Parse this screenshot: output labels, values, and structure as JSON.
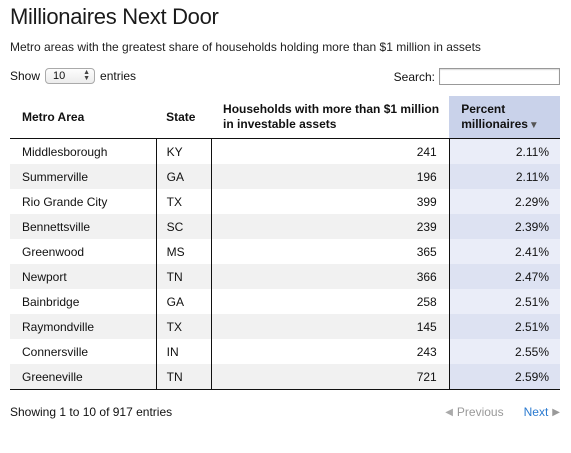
{
  "header": {
    "title": "Millionaires Next Door",
    "subtitle": "Metro areas with the greatest share of households holding more than $1 million in assets"
  },
  "length_control": {
    "label_before": "Show",
    "selected_value": "10",
    "label_after": "entries"
  },
  "search": {
    "label": "Search:",
    "value": "",
    "placeholder": ""
  },
  "table": {
    "columns": [
      {
        "label": "Metro Area"
      },
      {
        "label": "State"
      },
      {
        "label": "Households with more than $1 million in investable assets"
      },
      {
        "label": "Percent millionaires",
        "sorted": "descending-arrow",
        "sort_icon": "triangle-down-icon"
      }
    ],
    "rows": [
      {
        "metro": "Middlesborough",
        "state": "KY",
        "households": "241",
        "percent": "2.11%"
      },
      {
        "metro": "Summerville",
        "state": "GA",
        "households": "196",
        "percent": "2.11%"
      },
      {
        "metro": "Rio Grande City",
        "state": "TX",
        "households": "399",
        "percent": "2.29%"
      },
      {
        "metro": "Bennettsville",
        "state": "SC",
        "households": "239",
        "percent": "2.39%"
      },
      {
        "metro": "Greenwood",
        "state": "MS",
        "households": "365",
        "percent": "2.41%"
      },
      {
        "metro": "Newport",
        "state": "TN",
        "households": "366",
        "percent": "2.47%"
      },
      {
        "metro": "Bainbridge",
        "state": "GA",
        "households": "258",
        "percent": "2.51%"
      },
      {
        "metro": "Raymondville",
        "state": "TX",
        "households": "145",
        "percent": "2.51%"
      },
      {
        "metro": "Connersville",
        "state": "IN",
        "households": "243",
        "percent": "2.55%"
      },
      {
        "metro": "Greeneville",
        "state": "TN",
        "households": "721",
        "percent": "2.59%"
      }
    ]
  },
  "footer": {
    "info": "Showing 1 to 10 of 917 entries",
    "previous_label": "Previous",
    "next_label": "Next"
  },
  "colors": {
    "sorted_header_bg": "#c9d2ea",
    "sorted_cell_odd": "#eaedf8",
    "sorted_cell_even": "#dde2f2",
    "stripe": "#f1f1f1",
    "link_active": "#2a7ad0",
    "link_disabled": "#999999"
  }
}
